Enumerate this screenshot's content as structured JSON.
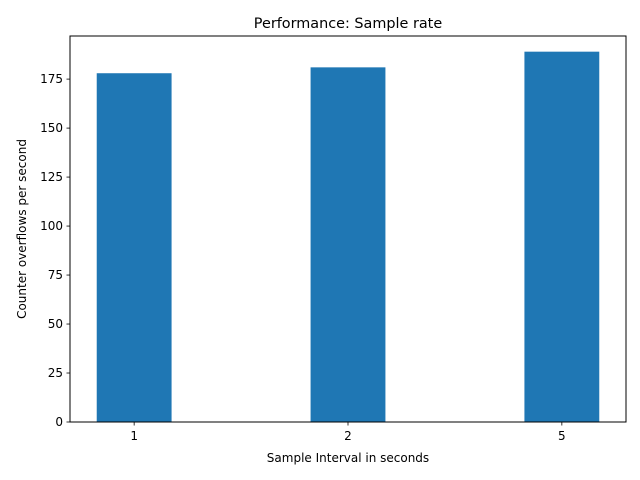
{
  "chart_data": {
    "type": "bar",
    "title": "Performance: Sample rate",
    "xlabel": "Sample Interval in seconds",
    "ylabel": "Counter overflows per second",
    "categories": [
      "1",
      "2",
      "5"
    ],
    "values": [
      178,
      181,
      189
    ],
    "ylim": [
      0,
      197
    ],
    "yticks": [
      0,
      25,
      50,
      75,
      100,
      125,
      150,
      175
    ],
    "bar_color": "#1f77b4",
    "grid": false,
    "legend": "none"
  }
}
